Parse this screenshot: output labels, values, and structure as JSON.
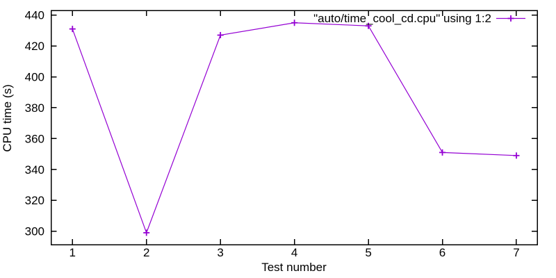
{
  "chart_data": {
    "type": "line",
    "title": "",
    "xlabel": "Test number",
    "ylabel": "CPU time (s)",
    "x": [
      1,
      2,
      3,
      4,
      5,
      6,
      7
    ],
    "series": [
      {
        "name": "\"auto/time_cool_cd.cpu\" using 1:2",
        "values": [
          431,
          299,
          427,
          435,
          433,
          351,
          349
        ],
        "color": "#9400d3",
        "marker": "plus"
      }
    ],
    "xticks": [
      1,
      2,
      3,
      4,
      5,
      6,
      7
    ],
    "yticks": [
      300,
      320,
      340,
      360,
      380,
      400,
      420,
      440
    ],
    "xlim": [
      0.711,
      7.282
    ],
    "ylim": [
      291.3,
      443.0
    ],
    "grid": false,
    "legend_position": "top-right",
    "background_color": "#ffffff",
    "axis_color": "#000000",
    "text_color": "#000000"
  }
}
